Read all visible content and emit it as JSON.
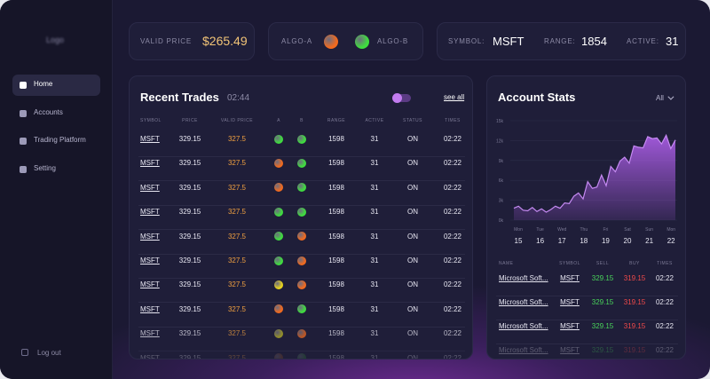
{
  "sidebar": {
    "logo": "Logo",
    "nav": [
      {
        "label": "Home",
        "active": true
      },
      {
        "label": "Accounts"
      },
      {
        "label": "Trading Platform"
      },
      {
        "label": "Setting"
      }
    ],
    "logout": "Log out"
  },
  "header": {
    "valid_price_label": "VALID PRICE",
    "valid_price": "$265.49",
    "algo_a": {
      "label": "ALGO-A",
      "color": "#f06a1f"
    },
    "algo_b": {
      "label": "ALGO-B",
      "color": "#3fdc3f"
    },
    "symbol_label": "SYMBOL:",
    "symbol": "MSFT",
    "range_label": "RANGE:",
    "range": "1854",
    "active_label": "ACTIVE:",
    "active": "31"
  },
  "recent_trades": {
    "title": "Recent Trades",
    "time": "02:44",
    "see_all": "see all",
    "columns": [
      "SYMBOL",
      "PRICE",
      "VALID PRICE",
      "A",
      "B",
      "RANGE",
      "ACTIVE",
      "STATUS",
      "TIMES"
    ],
    "rows": [
      {
        "symbol": "MSFT",
        "price": "329.15",
        "valid_price": "327.5",
        "a": "#3fdc3f",
        "b": "#3fdc3f",
        "range": "1598",
        "active": "31",
        "status": "ON",
        "time": "02:22"
      },
      {
        "symbol": "MSFT",
        "price": "329.15",
        "valid_price": "327.5",
        "a": "#f06a1f",
        "b": "#3fdc3f",
        "range": "1598",
        "active": "31",
        "status": "ON",
        "time": "02:22"
      },
      {
        "symbol": "MSFT",
        "price": "329.15",
        "valid_price": "327.5",
        "a": "#f06a1f",
        "b": "#3fdc3f",
        "range": "1598",
        "active": "31",
        "status": "ON",
        "time": "02:22"
      },
      {
        "symbol": "MSFT",
        "price": "329.15",
        "valid_price": "327.5",
        "a": "#3fdc3f",
        "b": "#3fdc3f",
        "range": "1598",
        "active": "31",
        "status": "ON",
        "time": "02:22"
      },
      {
        "symbol": "MSFT",
        "price": "329.15",
        "valid_price": "327.5",
        "a": "#3fdc3f",
        "b": "#f06a1f",
        "range": "1598",
        "active": "31",
        "status": "ON",
        "time": "02:22"
      },
      {
        "symbol": "MSFT",
        "price": "329.15",
        "valid_price": "327.5",
        "a": "#3fdc3f",
        "b": "#f06a1f",
        "range": "1598",
        "active": "31",
        "status": "ON",
        "time": "02:22"
      },
      {
        "symbol": "MSFT",
        "price": "329.15",
        "valid_price": "327.5",
        "a": "#e8d31d",
        "b": "#f06a1f",
        "range": "1598",
        "active": "31",
        "status": "ON",
        "time": "02:22"
      },
      {
        "symbol": "MSFT",
        "price": "329.15",
        "valid_price": "327.5",
        "a": "#f06a1f",
        "b": "#3fdc3f",
        "range": "1598",
        "active": "31",
        "status": "ON",
        "time": "02:22"
      },
      {
        "symbol": "MSFT",
        "price": "329.15",
        "valid_price": "327.5",
        "a": "#b8b326",
        "b": "#f06a1f",
        "range": "1598",
        "active": "31",
        "status": "ON",
        "time": "02:22"
      },
      {
        "symbol": "MSFT",
        "price": "329.15",
        "valid_price": "327.5",
        "a": "#8a4a20",
        "b": "#2f7a2f",
        "range": "1598",
        "active": "31",
        "status": "ON",
        "time": "02:22"
      }
    ]
  },
  "account_stats": {
    "title": "Account Stats",
    "filter": "All",
    "chart": {
      "type": "area",
      "color": "#a65be0",
      "values": [
        1800,
        2100,
        1500,
        1400,
        1900,
        1300,
        1700,
        1200,
        1600,
        2100,
        1800,
        2600,
        2500,
        3600,
        4100,
        3200,
        5800,
        4800,
        5000,
        6800,
        5200,
        8100,
        7300,
        8900,
        9500,
        8600,
        11200,
        11000,
        10900,
        12600,
        12300,
        12400,
        11500,
        12800,
        10800,
        12100
      ],
      "ylim": [
        0,
        15000
      ],
      "yticks": [
        {
          "value": 0,
          "label": "0k"
        },
        {
          "value": 3000,
          "label": "3k"
        },
        {
          "value": 6000,
          "label": "6k"
        },
        {
          "value": 9000,
          "label": "9k"
        },
        {
          "value": 12000,
          "label": "12k"
        },
        {
          "value": 15000,
          "label": "15k"
        }
      ],
      "days": [
        "Mon",
        "Tue",
        "Wed",
        "Thu",
        "Fri",
        "Sat",
        "Sun",
        "Mon"
      ],
      "dates": [
        "15",
        "16",
        "17",
        "18",
        "19",
        "20",
        "21",
        "22"
      ]
    },
    "columns": [
      "NAME",
      "SYMBOL",
      "SELL",
      "BUY",
      "TIMES"
    ],
    "rows": [
      {
        "name": "Microsoft Soft...",
        "symbol": "MSFT",
        "sell": "329.15",
        "buy": "319.15",
        "time": "02:22"
      },
      {
        "name": "Microsoft Soft...",
        "symbol": "MSFT",
        "sell": "329.15",
        "buy": "319.15",
        "time": "02:22"
      },
      {
        "name": "Microsoft Soft...",
        "symbol": "MSFT",
        "sell": "329.15",
        "buy": "319.15",
        "time": "02:22"
      },
      {
        "name": "Microsoft Soft...",
        "symbol": "MSFT",
        "sell": "329.15",
        "buy": "319.15",
        "time": "02:22"
      }
    ]
  }
}
